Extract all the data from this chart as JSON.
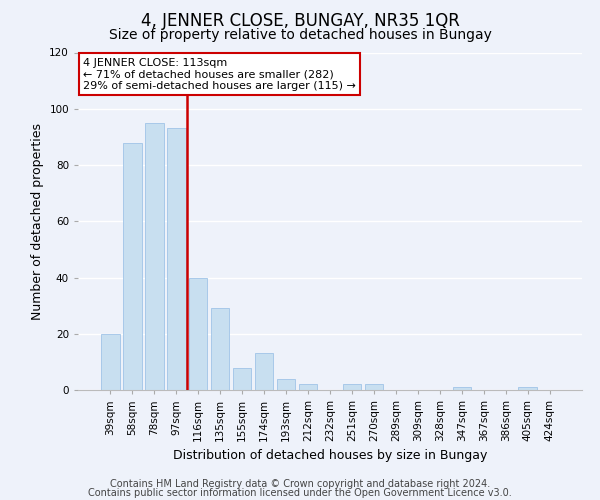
{
  "title": "4, JENNER CLOSE, BUNGAY, NR35 1QR",
  "subtitle": "Size of property relative to detached houses in Bungay",
  "xlabel": "Distribution of detached houses by size in Bungay",
  "ylabel": "Number of detached properties",
  "categories": [
    "39sqm",
    "58sqm",
    "78sqm",
    "97sqm",
    "116sqm",
    "135sqm",
    "155sqm",
    "174sqm",
    "193sqm",
    "212sqm",
    "232sqm",
    "251sqm",
    "270sqm",
    "289sqm",
    "309sqm",
    "328sqm",
    "347sqm",
    "367sqm",
    "386sqm",
    "405sqm",
    "424sqm"
  ],
  "values": [
    20,
    88,
    95,
    93,
    40,
    29,
    8,
    13,
    4,
    2,
    0,
    2,
    2,
    0,
    0,
    0,
    1,
    0,
    0,
    1,
    0
  ],
  "bar_color": "#c8dff0",
  "bar_edge_color": "#a0c4e8",
  "marker_index": 4,
  "marker_line_color": "#cc0000",
  "ylim": [
    0,
    120
  ],
  "yticks": [
    0,
    20,
    40,
    60,
    80,
    100,
    120
  ],
  "annotation_lines": [
    "4 JENNER CLOSE: 113sqm",
    "← 71% of detached houses are smaller (282)",
    "29% of semi-detached houses are larger (115) →"
  ],
  "annotation_box_color": "#ffffff",
  "annotation_box_edge_color": "#cc0000",
  "footer_lines": [
    "Contains HM Land Registry data © Crown copyright and database right 2024.",
    "Contains public sector information licensed under the Open Government Licence v3.0."
  ],
  "bg_color": "#eef2fa",
  "grid_color": "#ffffff",
  "title_fontsize": 12,
  "subtitle_fontsize": 10,
  "axis_label_fontsize": 9,
  "tick_fontsize": 7.5,
  "footer_fontsize": 7
}
